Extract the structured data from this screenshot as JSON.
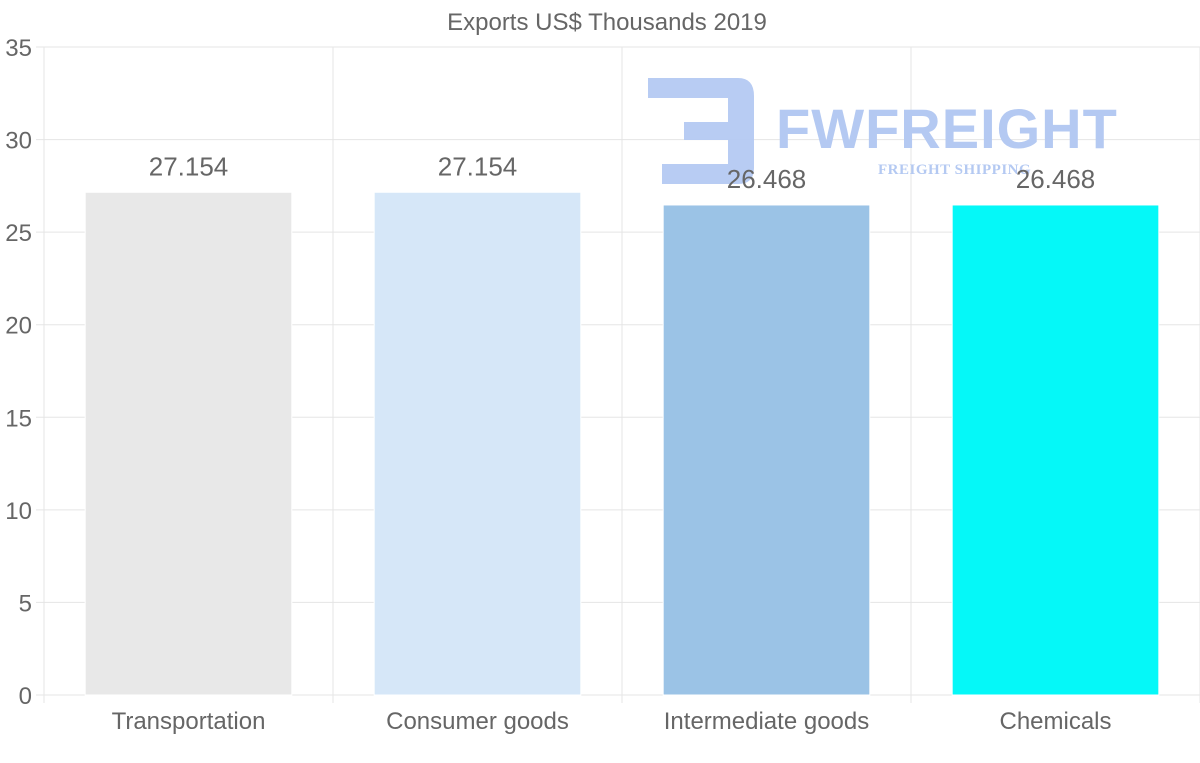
{
  "chart_data": {
    "type": "bar",
    "title": "Exports US$ Thousands 2019",
    "categories": [
      "Transportation",
      "Consumer goods",
      "Intermediate goods",
      "Chemicals"
    ],
    "values": [
      27.154,
      27.154,
      26.468,
      26.468
    ],
    "value_labels": [
      "27.154",
      "27.154",
      "26.468",
      "26.468"
    ],
    "colors": [
      "#e8e8e8",
      "#d6e7f8",
      "#9bc3e6",
      "#05f8f8"
    ],
    "ylim": [
      0,
      35
    ],
    "yticks": [
      0,
      5,
      10,
      15,
      20,
      25,
      30,
      35
    ],
    "xlabel": "",
    "ylabel": "",
    "grid": true
  },
  "watermark": {
    "name": "FWFREIGHT",
    "tagline": "FREIGHT SHIPPING",
    "color": "#b4c9f2"
  }
}
